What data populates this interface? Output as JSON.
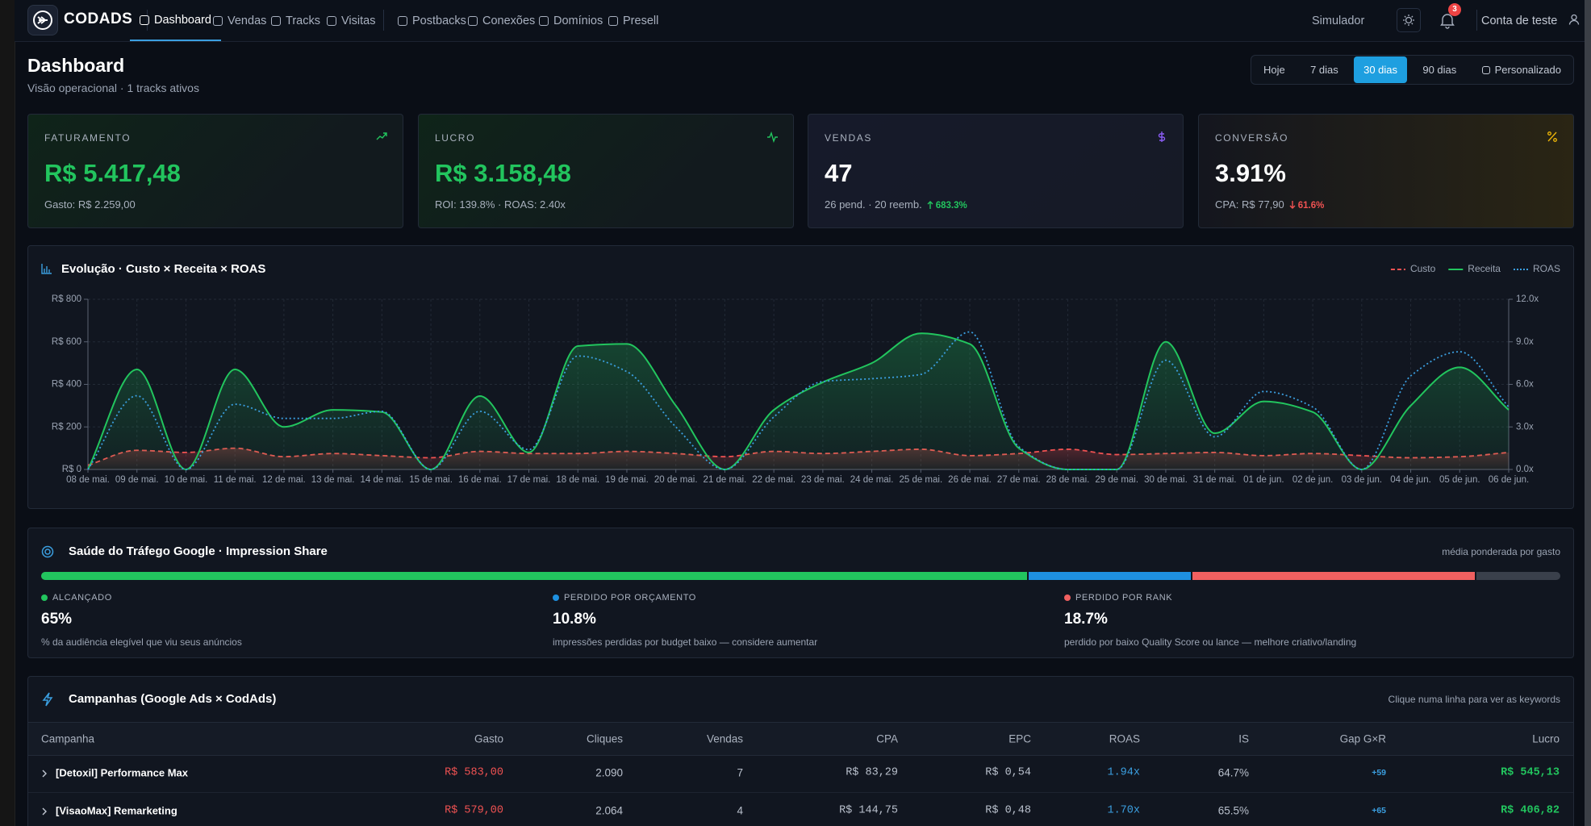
{
  "nav": {
    "brand": "CODADS",
    "items": [
      "Dashboard",
      "Vendas",
      "Tracks",
      "Visitas",
      "Postbacks",
      "Conexões",
      "Domínios",
      "Presell"
    ],
    "active": 0,
    "simulator": "Simulador",
    "notifications": 3,
    "account": "Conta de teste"
  },
  "header": {
    "title": "Dashboard",
    "subtitle": "Visão operacional · 1 tracks ativos",
    "ranges": [
      "Hoje",
      "7 dias",
      "30 dias",
      "90 dias",
      "Personalizado"
    ],
    "active_range": 2
  },
  "kpis": [
    {
      "label": "FATURAMENTO",
      "value": "R$ 5.417,48",
      "detail": "Gasto: R$ 2.259,00"
    },
    {
      "label": "LUCRO",
      "value": "R$ 3.158,48",
      "detail": "ROI: 139.8% · ROAS: 2.40x"
    },
    {
      "label": "VENDAS",
      "value": "47",
      "detail": "26 pend. · 20 reemb.",
      "change": "683.3%"
    },
    {
      "label": "CONVERSÃO",
      "value": "3.91%",
      "detail": "CPA: R$ 77,90",
      "change": "61.6%"
    }
  ],
  "chart_data": {
    "type": "line",
    "title": "Evolução · Custo × Receita × ROAS",
    "categories": [
      "08 de mai.",
      "09 de mai.",
      "10 de mai.",
      "11 de mai.",
      "12 de mai.",
      "13 de mai.",
      "14 de mai.",
      "15 de mai.",
      "16 de mai.",
      "17 de mai.",
      "18 de mai.",
      "19 de mai.",
      "20 de mai.",
      "21 de mai.",
      "22 de mai.",
      "23 de mai.",
      "24 de mai.",
      "25 de mai.",
      "26 de mai.",
      "27 de mai.",
      "28 de mai.",
      "29 de mai.",
      "30 de mai.",
      "31 de mai.",
      "01 de jun.",
      "02 de jun.",
      "03 de jun.",
      "04 de jun.",
      "05 de jun.",
      "06 de jun."
    ],
    "series": [
      {
        "name": "Custo",
        "color": "#f05252",
        "style": "dashed",
        "values": [
          20,
          90,
          80,
          100,
          60,
          75,
          65,
          55,
          85,
          75,
          75,
          85,
          75,
          60,
          85,
          75,
          85,
          95,
          65,
          75,
          95,
          70,
          75,
          80,
          65,
          75,
          65,
          55,
          60,
          80
        ]
      },
      {
        "name": "Receita",
        "color": "#22c55e",
        "style": "solid",
        "values": [
          0,
          470,
          0,
          470,
          200,
          280,
          270,
          0,
          345,
          80,
          580,
          590,
          300,
          0,
          280,
          410,
          500,
          640,
          590,
          100,
          0,
          0,
          600,
          170,
          320,
          270,
          0,
          300,
          480,
          280
        ]
      },
      {
        "name": "ROAS",
        "color": "#3b9fe0",
        "style": "dotted",
        "axis": "y2",
        "values": [
          0,
          5.2,
          0,
          4.6,
          3.6,
          3.6,
          4.1,
          0,
          4.1,
          1.4,
          8.0,
          6.9,
          3.0,
          0,
          3.7,
          6.2,
          6.4,
          6.7,
          9.7,
          1.6,
          0,
          0,
          7.7,
          2.3,
          5.5,
          4.4,
          0,
          6.6,
          8.3,
          4.4
        ]
      }
    ],
    "ylim": [
      0,
      800
    ],
    "yticks": [
      {
        "value": 0,
        "label": "R$ 0"
      },
      {
        "value": 200,
        "label": "R$ 200"
      },
      {
        "value": 400,
        "label": "R$ 400"
      },
      {
        "value": 600,
        "label": "R$ 600"
      },
      {
        "value": 800,
        "label": "R$ 800"
      }
    ],
    "y2lim": [
      0,
      12
    ],
    "y2ticks": [
      {
        "value": 0,
        "label": "0.0x"
      },
      {
        "value": 3,
        "label": "3.0x"
      },
      {
        "value": 6,
        "label": "6.0x"
      },
      {
        "value": 9,
        "label": "9.0x"
      },
      {
        "value": 12,
        "label": "12.0x"
      }
    ],
    "grid": true,
    "legend": "top-right"
  },
  "health": {
    "title": "Saúde do Tráfego Google · Impression Share",
    "note": "média ponderada por gasto",
    "segments": [
      {
        "label": "ALCANÇADO",
        "value": 65,
        "value_label": "65%",
        "color": "#22c55e",
        "description": "% da audiência elegível que viu seus anúncios"
      },
      {
        "label": "PERDIDO POR ORÇAMENTO",
        "value": 10.8,
        "value_label": "10.8%",
        "color": "#1e90e0",
        "description": "impressões perdidas por budget baixo — considere aumentar"
      },
      {
        "label": "PERDIDO POR RANK",
        "value": 18.7,
        "value_label": "18.7%",
        "color": "#f06060",
        "description": "perdido por baixo Quality Score ou lance — melhore criativo/landing"
      }
    ]
  },
  "table": {
    "title": "Campanhas (Google Ads × CodAds)",
    "note": "Clique numa linha para ver as keywords",
    "columns": [
      "Campanha",
      "Gasto",
      "Cliques",
      "Vendas",
      "CPA",
      "EPC",
      "ROAS",
      "IS",
      "Gap G×R",
      "Lucro"
    ],
    "rows": [
      [
        "[Detoxil] Performance Max",
        "R$ 583,00",
        "2.090",
        "7",
        "R$ 83,29",
        "R$ 0,54",
        "1.94x",
        "64.7%",
        "+59",
        "R$ 545,13"
      ],
      [
        "[VisaoMax] Remarketing",
        "R$ 579,00",
        "2.064",
        "4",
        "R$ 144,75",
        "R$ 0,48",
        "1.70x",
        "65.5%",
        "+65",
        "R$ 406,82"
      ]
    ]
  }
}
